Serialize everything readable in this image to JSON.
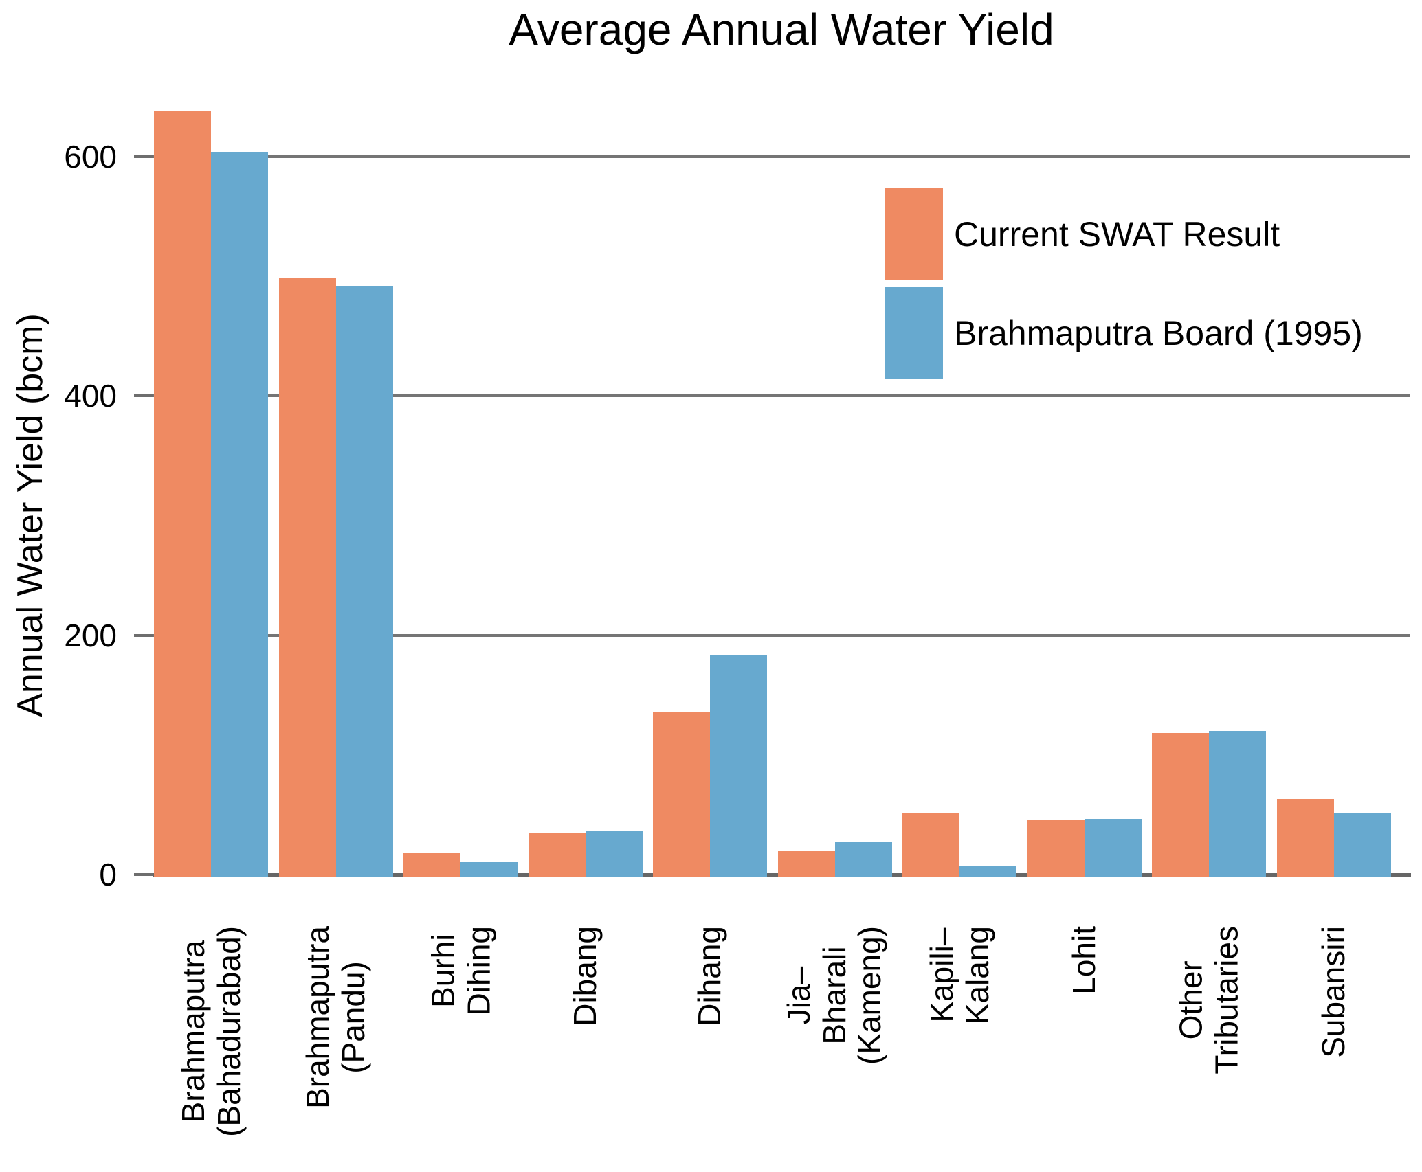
{
  "title": "Average Annual Water Yield",
  "y_axis": {
    "label": "Annual Water Yield (bcm)",
    "ticks": [
      0,
      200,
      400,
      600
    ]
  },
  "legend": {
    "items": [
      {
        "name": "Current SWAT Result",
        "color": "#EF8A62"
      },
      {
        "name": "Brahmaputra Board (1995)",
        "color": "#67A9CF"
      }
    ]
  },
  "colors": {
    "gridline": "#757575",
    "axis_line": "#666666"
  },
  "chart_data": {
    "type": "bar",
    "title": "Average Annual Water Yield",
    "xlabel": "",
    "ylabel": "Annual Water Yield (bcm)",
    "ylim": [
      0,
      674
    ],
    "yticks": [
      0,
      200,
      400,
      600
    ],
    "grid": "horizontal gridlines at 200 intervals",
    "legend_position": "upper right inside plot",
    "categories": [
      "Brahmaputra\n(Bahadurabad)",
      "Brahmaputra\n(Pandu)",
      "Burhi\nDihing",
      "Dibang",
      "Dihang",
      "Jia–Bharali\n(Kameng)",
      "Kapili–Kalang",
      "Lohit",
      "Other\nTributaries",
      "Subansiri"
    ],
    "series": [
      {
        "name": "Current SWAT Result",
        "color": "#EF8A62",
        "values": [
          640,
          500,
          20,
          36,
          138,
          21,
          53,
          47,
          120,
          65
        ]
      },
      {
        "name": "Brahmaputra Board (1995)",
        "color": "#67A9CF",
        "values": [
          606,
          494,
          12,
          38,
          185,
          29,
          9,
          48,
          122,
          53
        ]
      }
    ]
  }
}
